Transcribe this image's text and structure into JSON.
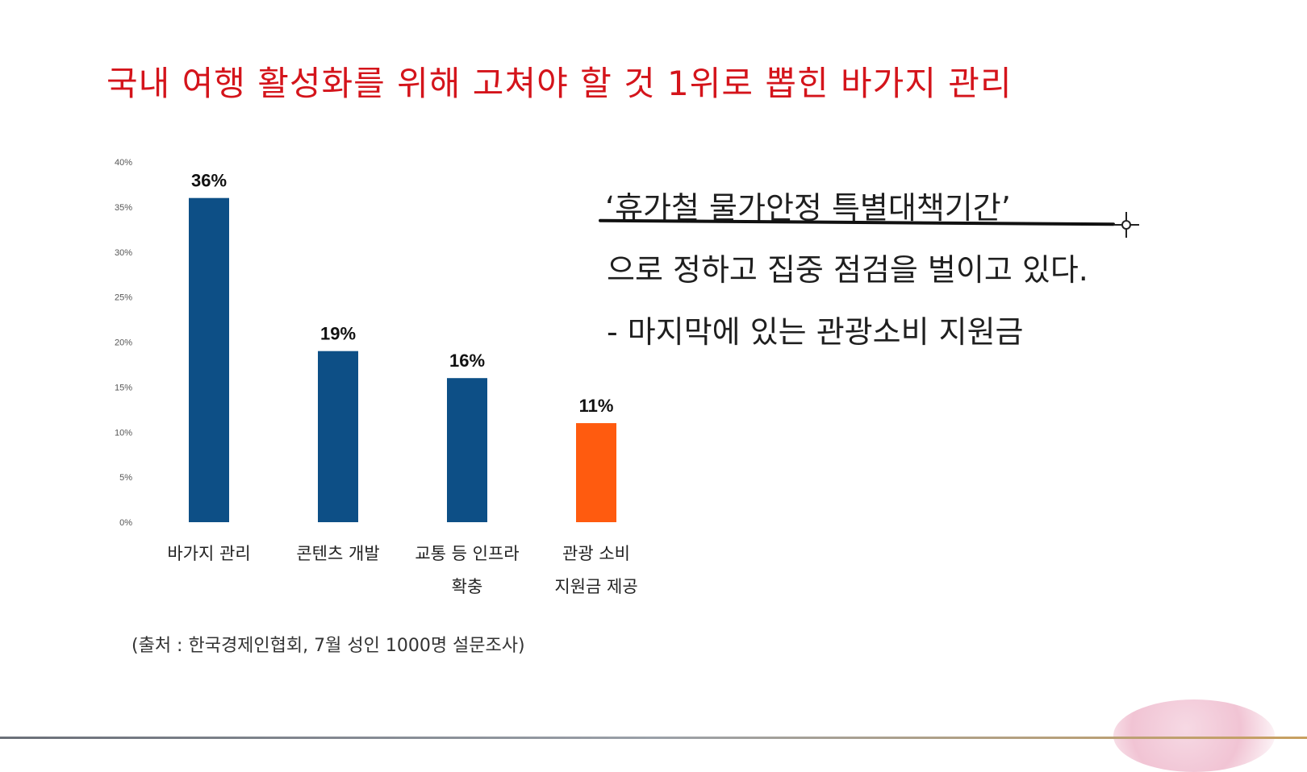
{
  "slide": {
    "title": "국내 여행 활성화를 위해 고쳐야 할 것 1위로 뽑힌 바가지 관리",
    "source": "(출처 : 한국경제인협회, 7월 성인 1000명 설문조사)"
  },
  "notes": {
    "line1": "‘휴가철 물가안정 특별대책기간’",
    "line2": "으로 정하고 집중 점검을 벌이고 있다.",
    "line3": "-   마지막에 있는 관광소비 지원금"
  },
  "colors": {
    "title": "#d4141b",
    "bar_default": "#0d4f86",
    "bar_highlight": "#ff5b0f"
  },
  "chart_data": {
    "type": "bar",
    "categories": [
      [
        "바가지 관리"
      ],
      [
        "콘텐츠 개발"
      ],
      [
        "교통 등 인프라",
        "확충"
      ],
      [
        "관광 소비",
        "지원금 제공"
      ]
    ],
    "values": [
      36,
      19,
      16,
      11
    ],
    "value_labels": [
      "36%",
      "19%",
      "16%",
      "11%"
    ],
    "highlight_index": 3,
    "ylim": [
      0,
      40
    ],
    "yticks": [
      0,
      5,
      10,
      15,
      20,
      25,
      30,
      35,
      40
    ],
    "ytick_labels": [
      "0%",
      "5%",
      "10%",
      "15%",
      "20%",
      "25%",
      "30%",
      "35%",
      "40%"
    ],
    "grid": false,
    "legend": "none"
  }
}
